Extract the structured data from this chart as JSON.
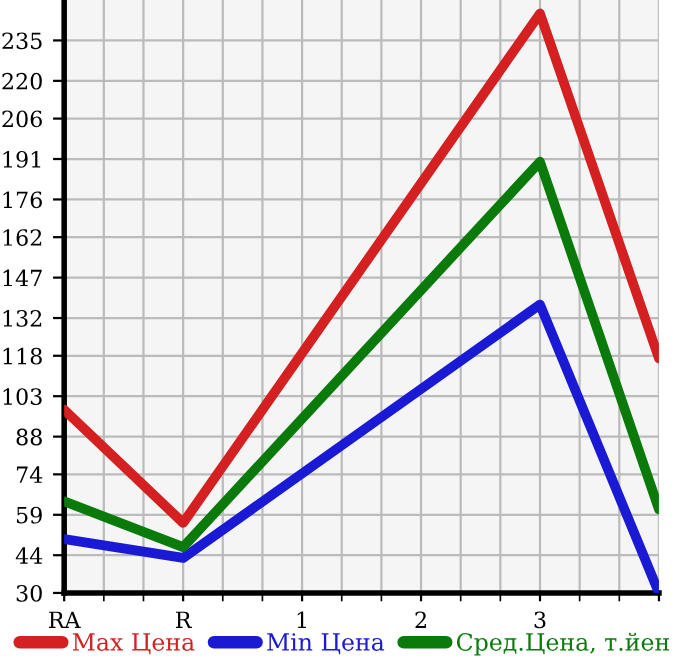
{
  "chart_data": {
    "type": "line",
    "categories": [
      "RA",
      "R",
      "1",
      "2",
      "3",
      null
    ],
    "series": [
      {
        "name": "Max Цена",
        "color": "#d42020",
        "values": [
          98,
          56,
          null,
          null,
          245,
          117
        ]
      },
      {
        "name": "Min Цена",
        "color": "#1a1ad4",
        "values": [
          50,
          43,
          null,
          null,
          137,
          30
        ]
      },
      {
        "name": "Сред.Цена, т.йен",
        "color": "#0a7a0a",
        "values": [
          64,
          47,
          null,
          null,
          190,
          61
        ]
      }
    ],
    "ylim": [
      30,
      250
    ],
    "yticks": [
      30,
      44,
      59,
      74,
      88,
      103,
      118,
      132,
      147,
      162,
      176,
      191,
      206,
      220,
      235
    ],
    "grid": true,
    "legend": "bottom",
    "marker": "none",
    "line_style": "solid"
  }
}
